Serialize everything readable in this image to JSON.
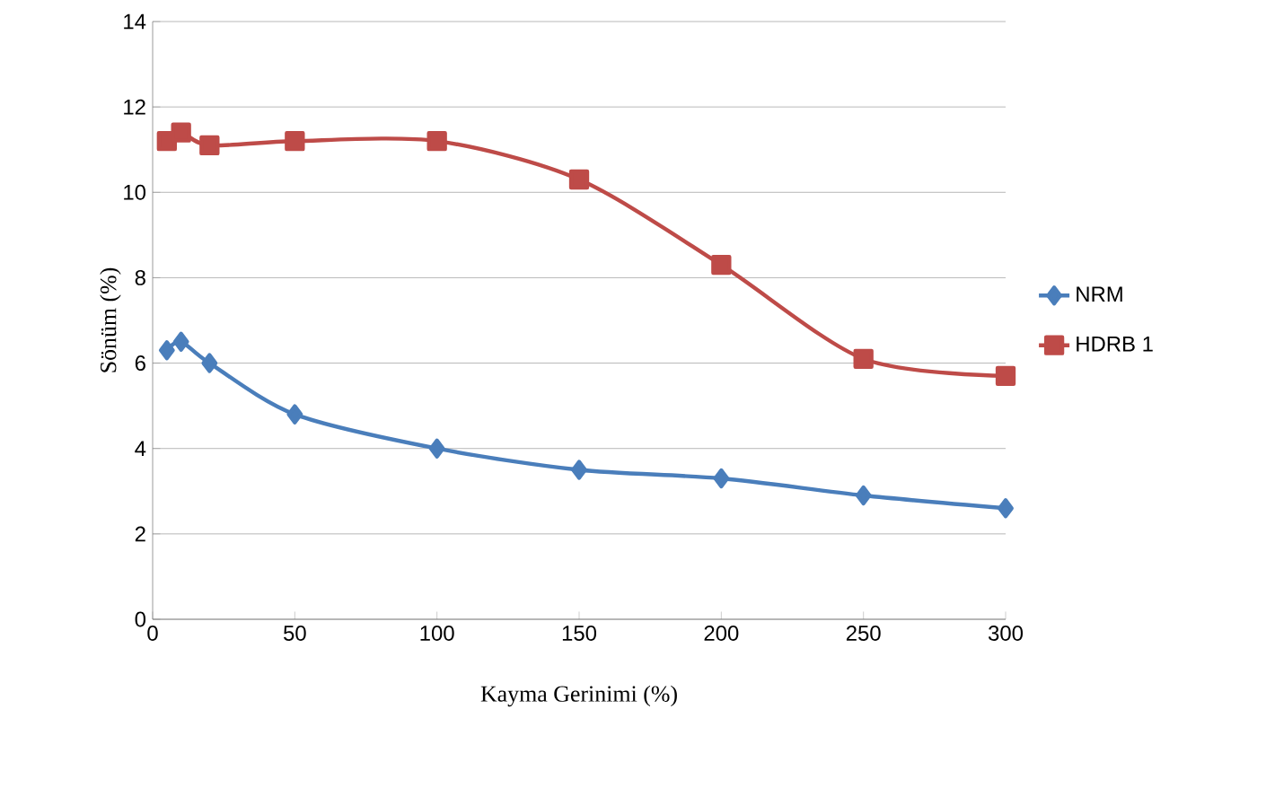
{
  "chart_data": {
    "type": "line",
    "xlabel": "Kayma Gerinimi (%)",
    "ylabel": "Sönüm (%)",
    "x": [
      5,
      10,
      20,
      50,
      100,
      150,
      200,
      250,
      300
    ],
    "series": [
      {
        "name": "NRM",
        "color": "#4a7ebb",
        "marker": "diamond",
        "values": [
          6.3,
          6.5,
          6.0,
          4.8,
          4.0,
          3.5,
          3.3,
          2.9,
          2.6
        ]
      },
      {
        "name": "HDRB 1",
        "color": "#be4b48",
        "marker": "square",
        "values": [
          11.2,
          11.4,
          11.1,
          11.2,
          11.2,
          10.3,
          8.3,
          6.1,
          5.7
        ]
      }
    ],
    "xlim": [
      0,
      300
    ],
    "xticks": [
      0,
      50,
      100,
      150,
      200,
      250,
      300
    ],
    "ylim": [
      0,
      14
    ],
    "yticks": [
      0,
      2,
      4,
      6,
      8,
      10,
      12,
      14
    ],
    "grid": "y",
    "legend": "right",
    "line_style": "solid"
  }
}
